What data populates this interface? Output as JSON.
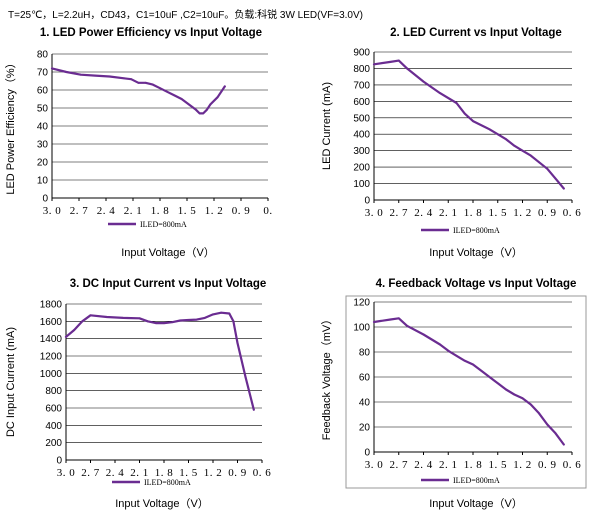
{
  "header_text": "T=25℃，L=2.2uH，CD43，C1=10uF ,C2=10uF。负载:科锐 3W LED(VF=3.0V)",
  "colors": {
    "line": "#6a2c91",
    "axis": "#000000",
    "grid": "#000000",
    "frame": "#999999"
  },
  "chart_data": [
    {
      "type": "line",
      "title": "1. LED Power Efficiency vs Input Voltage",
      "xlabel": "Input Voltage（V）",
      "ylabel": "LED Power Efficiency（%）",
      "xlim": [
        3.0,
        0.0
      ],
      "ylim": [
        0,
        80
      ],
      "x_ticks": [
        "3. 0",
        "2. 7",
        "2. 4",
        "2. 1",
        "1. 8",
        "1. 5",
        "1. 2",
        "0. 9",
        "0."
      ],
      "y_ticks": [
        "0",
        "10",
        "20",
        "30",
        "40",
        "50",
        "60",
        "70",
        "80"
      ],
      "grid": "horizontal",
      "legend": "bottom",
      "series": [
        {
          "name": "ILED=800mA",
          "x": [
            3.0,
            2.8,
            2.6,
            2.4,
            2.2,
            2.0,
            1.9,
            1.8,
            1.7,
            1.6,
            1.5,
            1.4,
            1.3,
            1.2,
            1.1,
            1.0,
            0.95,
            0.9,
            0.85,
            0.8,
            0.7,
            0.6
          ],
          "y": [
            72,
            70,
            68.5,
            68,
            67.5,
            66.5,
            66,
            64,
            64,
            63,
            61,
            59,
            57,
            55,
            52,
            49,
            47,
            47,
            49,
            52,
            56,
            62
          ]
        }
      ]
    },
    {
      "type": "line",
      "title": "2. LED Current vs Input Voltage",
      "xlabel": "Input Voltage（V）",
      "ylabel": "LED Current (mA)",
      "xlim": [
        3.0,
        0.6
      ],
      "ylim": [
        0,
        900
      ],
      "x_ticks": [
        "3. 0",
        "2. 7",
        "2. 4",
        "2. 1",
        "1. 8",
        "1. 5",
        "1. 2",
        "0. 9",
        "0. 6"
      ],
      "y_ticks": [
        "0",
        "100",
        "200",
        "300",
        "400",
        "500",
        "600",
        "700",
        "800",
        "900"
      ],
      "grid": "horizontal",
      "legend": "bottom",
      "series": [
        {
          "name": "ILED=800mA",
          "x": [
            3.0,
            2.8,
            2.7,
            2.6,
            2.4,
            2.2,
            2.0,
            1.9,
            1.8,
            1.6,
            1.4,
            1.3,
            1.2,
            1.1,
            1.0,
            0.9,
            0.8,
            0.7
          ],
          "y": [
            825,
            840,
            848,
            800,
            720,
            650,
            590,
            525,
            480,
            430,
            370,
            330,
            300,
            270,
            230,
            190,
            130,
            70
          ]
        }
      ]
    },
    {
      "type": "line",
      "title": "3. DC Input Current vs Input Voltage",
      "xlabel": "Input Voltage（V）",
      "ylabel": "DC Input Current (mA)",
      "xlim": [
        3.0,
        0.6
      ],
      "ylim": [
        0,
        1800
      ],
      "x_ticks": [
        "3. 0",
        "2. 7",
        "2. 4",
        "2. 1",
        "1. 8",
        "1. 5",
        "1. 2",
        "0. 9",
        "0. 6"
      ],
      "y_ticks": [
        "0",
        "200",
        "400",
        "600",
        "800",
        "1000",
        "1200",
        "1400",
        "1600",
        "1800"
      ],
      "grid": "horizontal",
      "legend": "bottom",
      "series": [
        {
          "name": "ILED=800mA",
          "x": [
            3.0,
            2.9,
            2.8,
            2.7,
            2.5,
            2.3,
            2.1,
            2.0,
            1.9,
            1.8,
            1.7,
            1.6,
            1.5,
            1.4,
            1.3,
            1.2,
            1.1,
            1.0,
            0.95,
            0.9,
            0.8,
            0.7
          ],
          "y": [
            1420,
            1500,
            1600,
            1670,
            1650,
            1640,
            1635,
            1600,
            1580,
            1580,
            1590,
            1610,
            1615,
            1620,
            1640,
            1680,
            1700,
            1690,
            1600,
            1350,
            950,
            580
          ]
        }
      ]
    },
    {
      "type": "line",
      "title": "4. Feedback Voltage vs Input Voltage",
      "xlabel": "Input Voltage（V）",
      "ylabel": "Feedback Voltage（mV）",
      "xlim": [
        3.0,
        0.6
      ],
      "ylim": [
        0,
        120
      ],
      "x_ticks": [
        "3. 0",
        "2. 7",
        "2. 4",
        "2. 1",
        "1. 8",
        "1. 5",
        "1. 2",
        "0. 9",
        "0. 6"
      ],
      "y_ticks": [
        "0",
        "20",
        "40",
        "60",
        "80",
        "100",
        "120"
      ],
      "grid": "horizontal",
      "legend": "bottom",
      "series": [
        {
          "name": "ILED=800mA",
          "x": [
            3.0,
            2.8,
            2.7,
            2.6,
            2.4,
            2.2,
            2.1,
            2.0,
            1.9,
            1.8,
            1.7,
            1.6,
            1.5,
            1.4,
            1.3,
            1.2,
            1.1,
            1.0,
            0.9,
            0.8,
            0.7
          ],
          "y": [
            104,
            106,
            107,
            101,
            94,
            86,
            81,
            77,
            73,
            70,
            65,
            60,
            55,
            50,
            46,
            43,
            38,
            31,
            22,
            15,
            6
          ]
        }
      ]
    }
  ]
}
